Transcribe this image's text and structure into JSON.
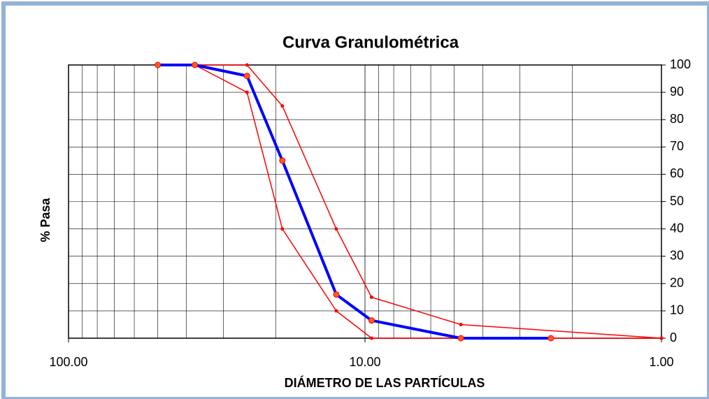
{
  "chart_data": {
    "type": "line",
    "title": "Curva Granulométrica",
    "ylabel": "%  Pasa",
    "xlabel": "DIÁMETRO DE LAS PARTÍCULAS",
    "xscale": "log",
    "xlim": [
      100,
      1
    ],
    "xticks": [
      {
        "value": 100,
        "label": "100.00"
      },
      {
        "value": 10,
        "label": "10.00"
      },
      {
        "value": 1,
        "label": "1.00"
      }
    ],
    "ylim": [
      0,
      100
    ],
    "yticks": [
      0,
      10,
      20,
      30,
      40,
      50,
      60,
      70,
      80,
      90,
      100
    ],
    "yaxis_side": "right",
    "grid": true,
    "series": [
      {
        "color": "#ff0000",
        "line_width": 1.5,
        "marker_size": 2,
        "x": [
          37.5,
          25,
          19,
          12.5,
          9.5,
          4.75,
          1
        ],
        "values": [
          100,
          100,
          85,
          40,
          15,
          5,
          0
        ]
      },
      {
        "color": "#ff0000",
        "line_width": 1.5,
        "marker_size": 2,
        "x": [
          37.5,
          25,
          19,
          12.5,
          9.5,
          4.75,
          2.36,
          1
        ],
        "values": [
          100,
          90,
          40,
          10,
          0,
          0,
          0,
          0
        ]
      },
      {
        "color": "#0000ff",
        "line_width": 4,
        "marker_size": 4,
        "marker_color": "#ff5a1f",
        "x": [
          50,
          37.5,
          25,
          19,
          12.5,
          9.5,
          4.75,
          2.36
        ],
        "values": [
          100,
          100,
          96,
          65,
          16,
          6.5,
          0,
          0
        ]
      }
    ]
  }
}
